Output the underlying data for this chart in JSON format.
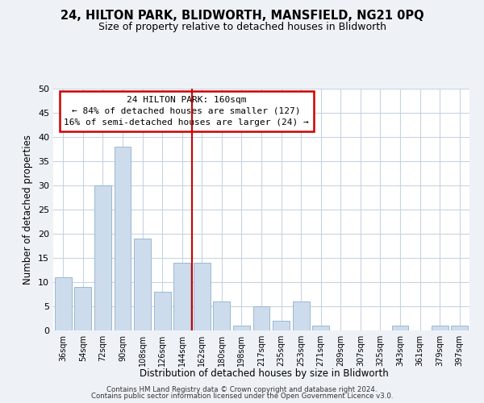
{
  "title": "24, HILTON PARK, BLIDWORTH, MANSFIELD, NG21 0PQ",
  "subtitle": "Size of property relative to detached houses in Blidworth",
  "xlabel": "Distribution of detached houses by size in Blidworth",
  "ylabel": "Number of detached properties",
  "bar_color": "#ccdcec",
  "bar_edge_color": "#9ab8d0",
  "grid_color": "#c8d4e0",
  "annotation_box_edge": "#cc0000",
  "vline_color": "#cc0000",
  "categories": [
    "36sqm",
    "54sqm",
    "72sqm",
    "90sqm",
    "108sqm",
    "126sqm",
    "144sqm",
    "162sqm",
    "180sqm",
    "198sqm",
    "217sqm",
    "235sqm",
    "253sqm",
    "271sqm",
    "289sqm",
    "307sqm",
    "325sqm",
    "343sqm",
    "361sqm",
    "379sqm",
    "397sqm"
  ],
  "values": [
    11,
    9,
    30,
    38,
    19,
    8,
    14,
    14,
    6,
    1,
    5,
    2,
    6,
    1,
    0,
    0,
    0,
    1,
    0,
    1,
    1
  ],
  "ylim": [
    0,
    50
  ],
  "yticks": [
    0,
    5,
    10,
    15,
    20,
    25,
    30,
    35,
    40,
    45,
    50
  ],
  "vline_index": 7,
  "annotation_title": "24 HILTON PARK: 160sqm",
  "annotation_line1": "← 84% of detached houses are smaller (127)",
  "annotation_line2": "16% of semi-detached houses are larger (24) →",
  "footer_line1": "Contains HM Land Registry data © Crown copyright and database right 2024.",
  "footer_line2": "Contains public sector information licensed under the Open Government Licence v3.0.",
  "background_color": "#eef2f7",
  "plot_bg_color": "#ffffff"
}
